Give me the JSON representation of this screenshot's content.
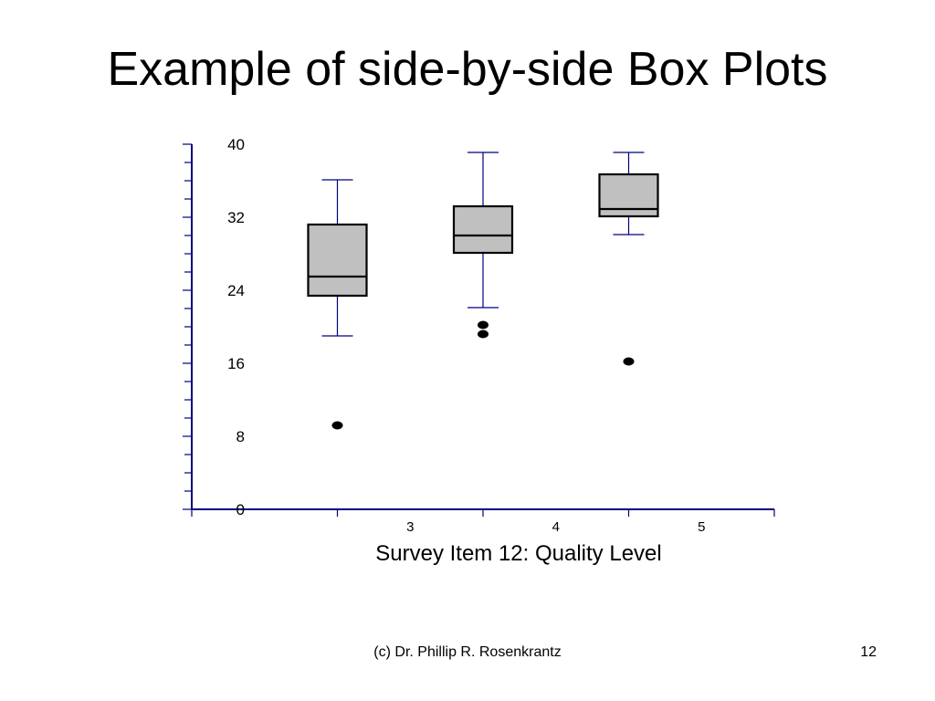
{
  "slide": {
    "title": "Example of side-by-side Box Plots",
    "footer": "(c) Dr. Phillip R. Rosenkrantz",
    "page_number": "12"
  },
  "chart_data": {
    "type": "box",
    "title": "",
    "xlabel": "Survey Item 12: Quality Level",
    "ylabel": "",
    "ylim": [
      0,
      40
    ],
    "y_ticks": [
      0,
      8,
      16,
      24,
      32,
      40
    ],
    "categories": [
      "3",
      "4",
      "5"
    ],
    "boxes": [
      {
        "category": "3",
        "whisker_low": 19,
        "q1": 23.4,
        "median": 25.5,
        "q3": 31.2,
        "whisker_high": 36.1,
        "outliers": [
          9.2
        ]
      },
      {
        "category": "4",
        "whisker_low": 22.1,
        "q1": 28.1,
        "median": 30,
        "q3": 33.2,
        "whisker_high": 39.1,
        "outliers": [
          19.2,
          20.2
        ]
      },
      {
        "category": "5",
        "whisker_low": 30.1,
        "q1": 32.1,
        "median": 32.9,
        "q3": 36.7,
        "whisker_high": 39.1,
        "outliers": [
          16.2
        ]
      }
    ],
    "colors": {
      "box_fill": "#c0c0c0",
      "box_stroke": "#000000",
      "whisker": "#000080",
      "axis": "#000080"
    },
    "grid": false
  }
}
